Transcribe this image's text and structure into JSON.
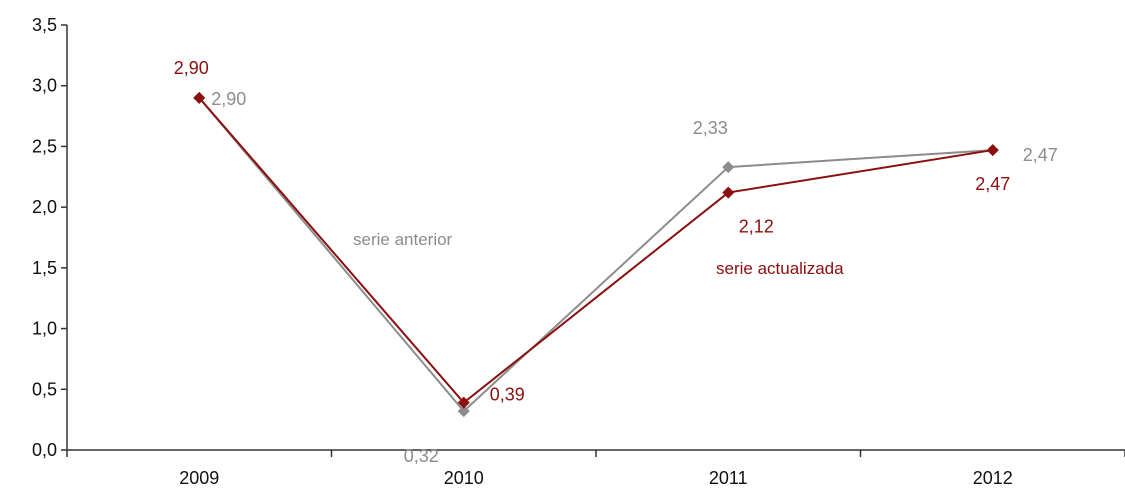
{
  "chart_data": {
    "type": "line",
    "categories": [
      "2009",
      "2010",
      "2011",
      "2012"
    ],
    "ylim": [
      0,
      3.5
    ],
    "yticks": [
      "0,0",
      "0,5",
      "1,0",
      "1,5",
      "2,0",
      "2,5",
      "3,0",
      "3,5"
    ],
    "grid": false,
    "series": [
      {
        "name": "serie anterior",
        "color": "#8c8c8c",
        "values": [
          2.9,
          0.32,
          2.33,
          2.47
        ],
        "labels": [
          "2,90",
          "0,32",
          "2,33",
          "2,47"
        ]
      },
      {
        "name": "serie actualizada",
        "color": "#8b0f0f",
        "values": [
          2.9,
          0.39,
          2.12,
          2.47
        ],
        "labels": [
          "2,90",
          "0,39",
          "2,12",
          "2,47"
        ]
      }
    ]
  }
}
